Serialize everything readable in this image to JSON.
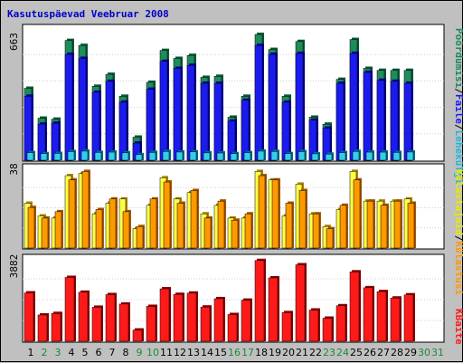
{
  "colors": {
    "background": "#c0c0c0",
    "panel": "#ffffff",
    "grid": "#d0d0d0",
    "title": "#0000cc",
    "kulastused_front": "#1e8c5c",
    "kulastused_back": "#0a5a36",
    "lehekulgi_front": "#1b1bf0",
    "lehekulgi_back": "#00008a",
    "failid_front": "#33ccee",
    "failid_back": "#006a8a",
    "kulalised_front": "#ffff44",
    "kulalised_back": "#a88800",
    "kulastused2_front": "#ff9900",
    "kulastused2_back": "#a85a00",
    "kbaite_front": "#ff1a1a",
    "kbaite_back": "#8a0000",
    "weekday_tick": "#000000",
    "weekend_tick": "#1a8a3a"
  },
  "chart_data": {
    "type": "bar",
    "title": "Kasutuspäevad Veebruar 2008",
    "categories": [
      "1",
      "2",
      "3",
      "4",
      "5",
      "6",
      "7",
      "8",
      "9",
      "10",
      "11",
      "12",
      "13",
      "14",
      "15",
      "16",
      "17",
      "18",
      "19",
      "20",
      "21",
      "22",
      "23",
      "24",
      "25",
      "26",
      "27",
      "28",
      "29",
      "30",
      "31"
    ],
    "weekend_days": [
      "2",
      "3",
      "9",
      "10",
      "16",
      "17",
      "23",
      "24",
      "30",
      "31"
    ],
    "panels": [
      {
        "id": "traffic",
        "ytick": "663",
        "ymax": 663,
        "series": [
          {
            "name": "Pöördumisi",
            "values": [
              370,
              220,
              215,
              610,
              585,
              380,
              440,
              330,
              125,
              400,
              560,
              520,
              535,
              425,
              430,
              225,
              330,
              640,
              565,
              330,
              605,
              225,
              190,
              415,
              615,
              470,
              460,
              460,
              460,
              null,
              null
            ]
          },
          {
            "name": "Lehekülgi",
            "values": [
              330,
              190,
              195,
              540,
              520,
              350,
              405,
              300,
              95,
              365,
              505,
              470,
              485,
              395,
              395,
              205,
              310,
              585,
              540,
              300,
              545,
              210,
              170,
              395,
              545,
              450,
              410,
              405,
              395,
              null,
              null
            ]
          },
          {
            "name": "Faile",
            "values": [
              40,
              30,
              32,
              50,
              55,
              42,
              45,
              38,
              20,
              42,
              52,
              46,
              48,
              38,
              36,
              30,
              40,
              55,
              52,
              30,
              50,
              28,
              25,
              40,
              52,
              45,
              45,
              42,
              46,
              null,
              null
            ]
          }
        ]
      },
      {
        "id": "visits",
        "ytick": "38",
        "ymax": 38,
        "series": [
          {
            "name": "Külastusi",
            "values": [
              22,
              16,
              15,
              35,
              36,
              17,
              22,
              24,
              10,
              21,
              34,
              24,
              27,
              17,
              21,
              15,
              15,
              37,
              33,
              16,
              31,
              17,
              11,
              19,
              37,
              23,
              23,
              23,
              24,
              null,
              null
            ]
          },
          {
            "name": "Külastajaid",
            "values": [
              20,
              15,
              18,
              33,
              37,
              19,
              24,
              18,
              11,
              24,
              32,
              22,
              28,
              15,
              23,
              14,
              17,
              35,
              33,
              22,
              28,
              17,
              10,
              21,
              33,
              23,
              21,
              23,
              22,
              null,
              null
            ]
          }
        ]
      },
      {
        "id": "bytes",
        "ytick": "3882",
        "ymax": 3882,
        "series": [
          {
            "name": "KBaite",
            "values": [
              2340,
              1310,
              1380,
              3060,
              2370,
              1670,
              2260,
              1820,
              610,
              1710,
              2530,
              2270,
              2330,
              1680,
              2070,
              1330,
              2000,
              3850,
              3040,
              1420,
              3650,
              1540,
              1160,
              1740,
              3320,
              2580,
              2400,
              2100,
              2250,
              null,
              null
            ]
          }
        ]
      }
    ]
  },
  "legend": {
    "faile_sep": "/",
    "traffic_parts": [
      "Pöördumisi",
      "/",
      "Faile",
      "/",
      "Lehekülgi"
    ],
    "visits_parts": [
      "Külastajaid",
      "/",
      "Külastusi"
    ],
    "bytes_parts": [
      "KBaite"
    ]
  }
}
